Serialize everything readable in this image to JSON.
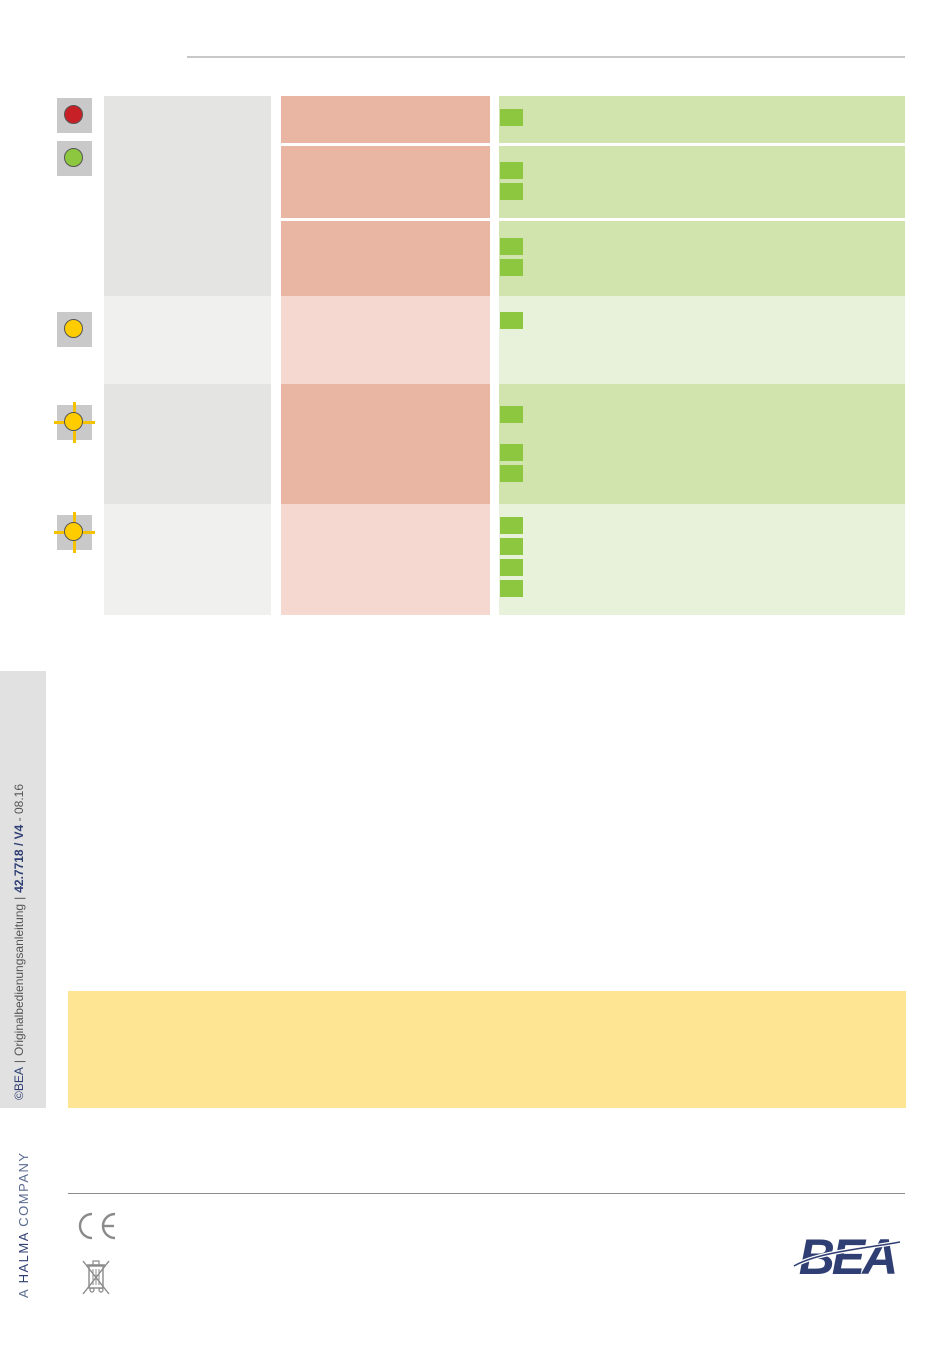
{
  "sidebar": {
    "copyright": "©BEA",
    "document_title": "Originalbedienungsanleitung",
    "document_number": "42.7718 / V4",
    "document_date": "08.16"
  },
  "footer": {
    "company_prefix": "A",
    "company_name": "HALMA",
    "company_suffix": "COMPANY",
    "brand_logo_text": "BEA",
    "ce_mark": "CE"
  },
  "colors": {
    "led_red": "#c82027",
    "led_green": "#8dc63f",
    "led_yellow": "#ffcc00",
    "note_background": "#fde594",
    "brand_navy": "#2f3e73"
  },
  "led_table": {
    "rows": [
      {
        "icon": "red-led-icon"
      },
      {
        "icon": "green-led-icon"
      },
      {
        "icon": "yellow-led-icon"
      },
      {
        "icon": "yellow-flashing-led-icon"
      },
      {
        "icon": "yellow-flashing-led-icon"
      }
    ]
  }
}
